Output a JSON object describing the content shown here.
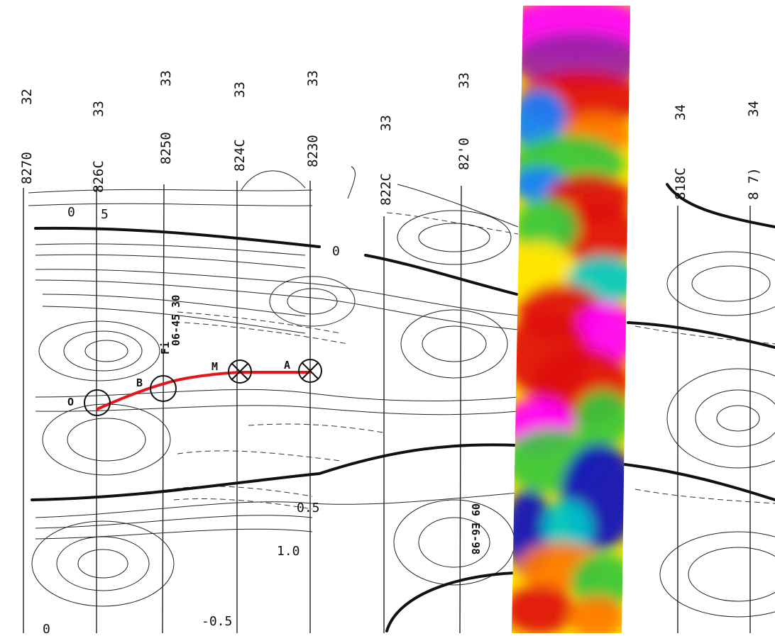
{
  "map": {
    "line_labels": [
      {
        "id": "l8270",
        "number": "8270",
        "suffix": "32"
      },
      {
        "id": "l8260",
        "number": "826C",
        "suffix": "33"
      },
      {
        "id": "l8250",
        "number": "8250",
        "suffix": "33"
      },
      {
        "id": "l8240",
        "number": "824C",
        "suffix": "33"
      },
      {
        "id": "l8230",
        "number": "8230",
        "suffix": "33"
      },
      {
        "id": "l8220",
        "number": "822C",
        "suffix": "33"
      },
      {
        "id": "l8210",
        "number": "82'0",
        "suffix": "33"
      },
      {
        "id": "l8180",
        "number": "818C",
        "suffix": "34"
      },
      {
        "id": "l8170",
        "number": "8 7)",
        "suffix": "34"
      }
    ],
    "contour_labels": [
      {
        "id": "c1",
        "text": "0"
      },
      {
        "id": "c2",
        "text": "5"
      },
      {
        "id": "c3",
        "text": "0"
      },
      {
        "id": "c4",
        "text": "0.5"
      },
      {
        "id": "c5",
        "text": "1.0"
      },
      {
        "id": "c6",
        "text": "-0.5"
      },
      {
        "id": "c7",
        "text": "0"
      }
    ],
    "stations": [
      {
        "id": "O",
        "label": "O"
      },
      {
        "id": "B",
        "label": "B"
      },
      {
        "id": "M",
        "label": "M"
      },
      {
        "id": "A",
        "label": "A"
      }
    ],
    "annotations": [
      {
        "id": "a1",
        "text": "06-45 30"
      },
      {
        "id": "a2",
        "text": "09 E6-98"
      },
      {
        "id": "a3",
        "text": "Fi"
      }
    ],
    "profile_color": "#e8141c",
    "overlay_colors": [
      "#ff00ff",
      "#9b1fa8",
      "#e01010",
      "#ff7a00",
      "#ffe600",
      "#36c83c",
      "#00c8c8",
      "#1080ff",
      "#1010c0"
    ]
  }
}
